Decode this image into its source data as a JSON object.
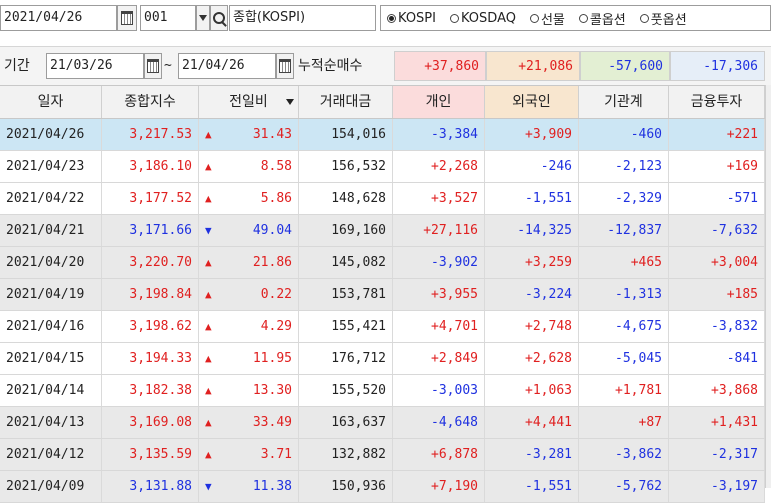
{
  "toolbar": {
    "date": "2021/04/26",
    "code": "001",
    "index_name": "종합(KOSPI)",
    "radios": [
      {
        "label": "KOSPI",
        "selected": true
      },
      {
        "label": "KOSDAQ",
        "selected": false
      },
      {
        "label": "선물",
        "selected": false
      },
      {
        "label": "콜옵션",
        "selected": false
      },
      {
        "label": "풋옵션",
        "selected": false
      }
    ]
  },
  "period": {
    "label": "기간",
    "start": "21/03/26",
    "tilde": "~",
    "end": "21/04/26",
    "sum_label": "누적순매수",
    "sums": {
      "individual": "+37,860",
      "foreign": "+21,086",
      "institution": "-57,600",
      "financial": "-17,306"
    }
  },
  "headers": [
    "일자",
    "종합지수",
    "전일비",
    "거래대금",
    "개인",
    "외국인",
    "기관계",
    "금융투자"
  ],
  "rows": [
    {
      "date": "2021/04/26",
      "index": "3,217.53",
      "dir": "up",
      "change": "31.43",
      "value": "154,016",
      "individual": "-3,384",
      "foreign": "+3,909",
      "institution": "-460",
      "financial": "+221"
    },
    {
      "date": "2021/04/23",
      "index": "3,186.10",
      "dir": "up",
      "change": "8.58",
      "value": "156,532",
      "individual": "+2,268",
      "foreign": "-246",
      "institution": "-2,123",
      "financial": "+169"
    },
    {
      "date": "2021/04/22",
      "index": "3,177.52",
      "dir": "up",
      "change": "5.86",
      "value": "148,628",
      "individual": "+3,527",
      "foreign": "-1,551",
      "institution": "-2,329",
      "financial": "-571"
    },
    {
      "date": "2021/04/21",
      "index": "3,171.66",
      "dir": "down",
      "change": "49.04",
      "value": "169,160",
      "individual": "+27,116",
      "foreign": "-14,325",
      "institution": "-12,837",
      "financial": "-7,632"
    },
    {
      "date": "2021/04/20",
      "index": "3,220.70",
      "dir": "up",
      "change": "21.86",
      "value": "145,082",
      "individual": "-3,902",
      "foreign": "+3,259",
      "institution": "+465",
      "financial": "+3,004"
    },
    {
      "date": "2021/04/19",
      "index": "3,198.84",
      "dir": "up",
      "change": "0.22",
      "value": "153,781",
      "individual": "+3,955",
      "foreign": "-3,224",
      "institution": "-1,313",
      "financial": "+185"
    },
    {
      "date": "2021/04/16",
      "index": "3,198.62",
      "dir": "up",
      "change": "4.29",
      "value": "155,421",
      "individual": "+4,701",
      "foreign": "+2,748",
      "institution": "-4,675",
      "financial": "-3,832"
    },
    {
      "date": "2021/04/15",
      "index": "3,194.33",
      "dir": "up",
      "change": "11.95",
      "value": "176,712",
      "individual": "+2,849",
      "foreign": "+2,628",
      "institution": "-5,045",
      "financial": "-841"
    },
    {
      "date": "2021/04/14",
      "index": "3,182.38",
      "dir": "up",
      "change": "13.30",
      "value": "155,520",
      "individual": "-3,003",
      "foreign": "+1,063",
      "institution": "+1,781",
      "financial": "+3,868"
    },
    {
      "date": "2021/04/13",
      "index": "3,169.08",
      "dir": "up",
      "change": "33.49",
      "value": "163,637",
      "individual": "-4,648",
      "foreign": "+4,441",
      "institution": "+87",
      "financial": "+1,431"
    },
    {
      "date": "2021/04/12",
      "index": "3,135.59",
      "dir": "up",
      "change": "3.71",
      "value": "132,882",
      "individual": "+6,878",
      "foreign": "-3,281",
      "institution": "-3,862",
      "financial": "-2,317"
    },
    {
      "date": "2021/04/09",
      "index": "3,131.88",
      "dir": "down",
      "change": "11.38",
      "value": "150,936",
      "individual": "+7,190",
      "foreign": "-1,551",
      "institution": "-5,762",
      "financial": "-3,197"
    }
  ],
  "symbols": {
    "up": "▲",
    "down": "▼"
  },
  "row_styles": [
    "sel",
    "white",
    "white",
    "grey",
    "grey",
    "grey",
    "white",
    "white",
    "white",
    "grey",
    "grey",
    "grey"
  ],
  "colors": {
    "up": "#e02020",
    "down": "#1f31e0",
    "selected_row": "#cce6f4",
    "grey_row": "#e9e9e9",
    "sum_individual_bg": "#fbdcdc",
    "sum_foreign_bg": "#f8e6cf",
    "sum_institution_bg": "#e3efd3",
    "sum_financial_bg": "#e6eef8",
    "header_individual_bg": "#fbdcdc",
    "header_foreign_bg": "#f8e6cf"
  },
  "icons": [
    "calendar-icon",
    "dropdown-arrow-icon",
    "search-icon",
    "sort-arrow-icon"
  ]
}
